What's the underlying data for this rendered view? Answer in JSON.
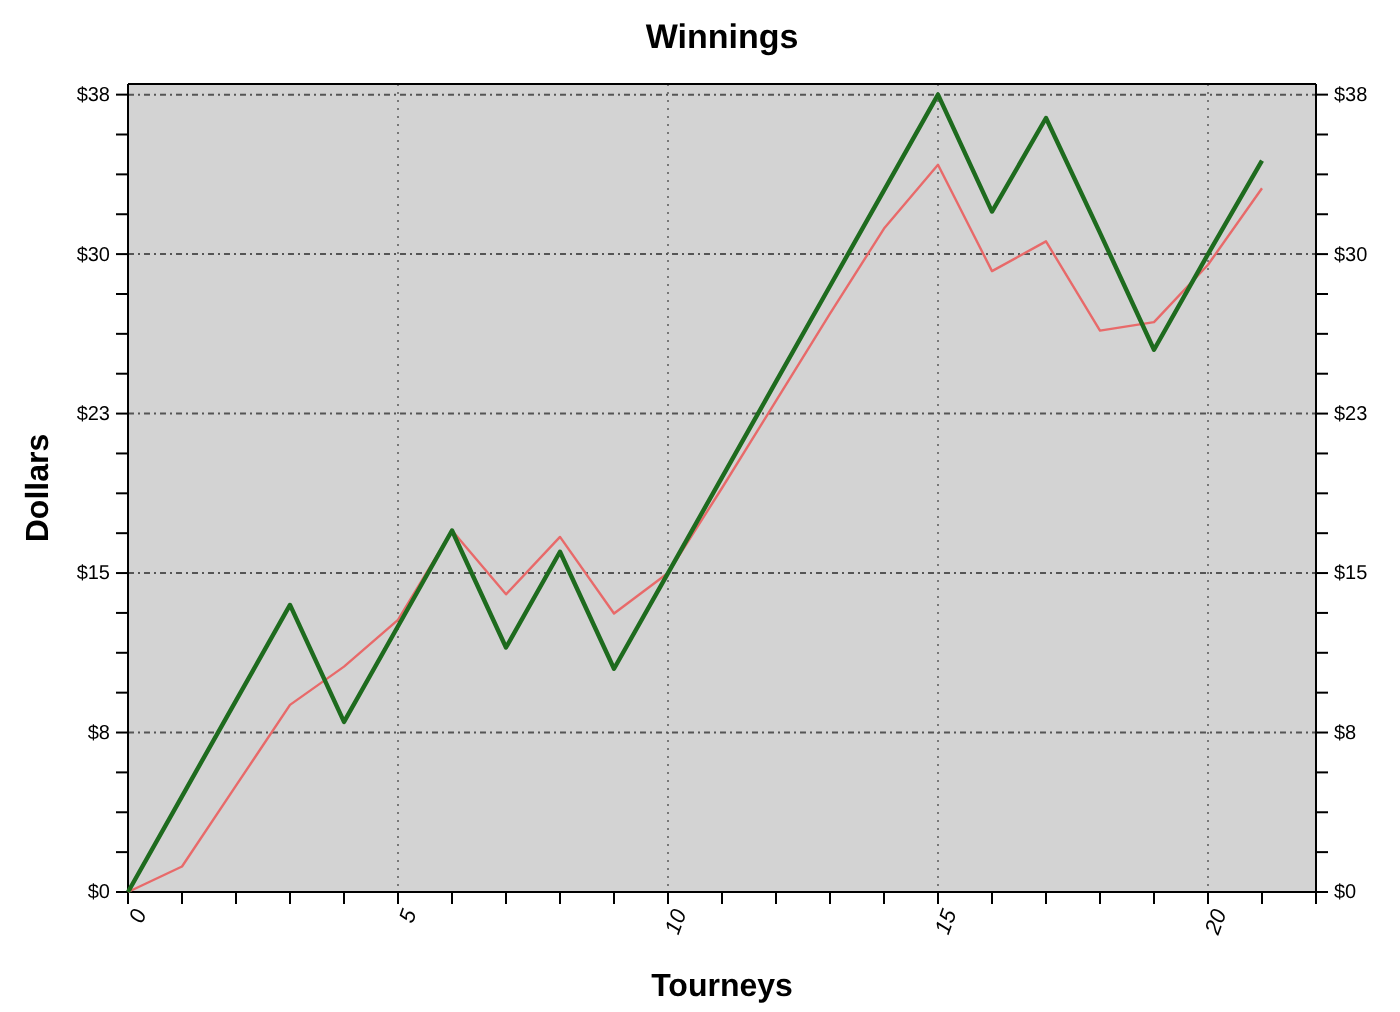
{
  "chart_data": {
    "type": "line",
    "title": "Winnings",
    "xlabel": "Tourneys",
    "ylabel": "Dollars",
    "x": [
      0,
      1,
      2,
      3,
      4,
      5,
      6,
      7,
      8,
      9,
      10,
      11,
      12,
      13,
      14,
      15,
      16,
      17,
      18,
      19,
      20,
      21
    ],
    "series": [
      {
        "color": "#e86a6a",
        "values": [
          0,
          1.2,
          5,
          8.8,
          10.6,
          12.8,
          17,
          14,
          16.7,
          13.1,
          15,
          19,
          23.1,
          27.2,
          31.2,
          34.2,
          29.2,
          30.6,
          26.4,
          26.8,
          29.5,
          33.1
        ]
      },
      {
        "color": "#1e6b1e",
        "values": [
          0,
          4.5,
          9,
          13.5,
          8,
          12.5,
          17,
          11.5,
          16,
          10.5,
          15,
          19.5,
          24,
          28.5,
          33,
          37.5,
          32,
          36.4,
          31,
          25.5,
          30,
          34.4
        ]
      }
    ],
    "xlim": [
      0,
      22
    ],
    "xticks": [
      0,
      {
        "value": 1,
        "label": null
      },
      {
        "value": 2,
        "label": null
      },
      {
        "value": 3,
        "label": null
      },
      {
        "value": 4,
        "label": null
      },
      5,
      {
        "value": 6,
        "label": null
      },
      {
        "value": 7,
        "label": null
      },
      {
        "value": 8,
        "label": null
      },
      {
        "value": 9,
        "label": null
      },
      10,
      {
        "value": 11,
        "label": null
      },
      {
        "value": 12,
        "label": null
      },
      {
        "value": 13,
        "label": null
      },
      {
        "value": 14,
        "label": null
      },
      15,
      {
        "value": 16,
        "label": null
      },
      {
        "value": 17,
        "label": null
      },
      {
        "value": 18,
        "label": null
      },
      {
        "value": 19,
        "label": null
      },
      20,
      {
        "value": 21,
        "label": null
      }
    ],
    "ylim": [
      0,
      38
    ],
    "yticks": [
      {
        "value": 0,
        "label": "$0"
      },
      {
        "value": 1.875,
        "label": null
      },
      {
        "value": 3.75,
        "label": null
      },
      {
        "value": 5.625,
        "label": null
      },
      {
        "value": 7.5,
        "label": "$8"
      },
      {
        "value": 9.375,
        "label": null
      },
      {
        "value": 11.25,
        "label": null
      },
      {
        "value": 13.125,
        "label": null
      },
      {
        "value": 15,
        "label": "$15"
      },
      {
        "value": 16.875,
        "label": null
      },
      {
        "value": 18.75,
        "label": null
      },
      {
        "value": 20.625,
        "label": null
      },
      {
        "value": 22.5,
        "label": "$23"
      },
      {
        "value": 24.375,
        "label": null
      },
      {
        "value": 26.25,
        "label": null
      },
      {
        "value": 28.125,
        "label": null
      },
      {
        "value": 30,
        "label": "$30"
      },
      {
        "value": 31.875,
        "label": null
      },
      {
        "value": 33.75,
        "label": null
      },
      {
        "value": 35.625,
        "label": null
      },
      {
        "value": 37.5,
        "label": "$38"
      }
    ],
    "y2lim": [
      0,
      38
    ],
    "y2ticks": [
      {
        "value": 0,
        "label": "$0"
      },
      {
        "value": 1.875,
        "label": null
      },
      {
        "value": 3.75,
        "label": null
      },
      {
        "value": 5.625,
        "label": null
      },
      {
        "value": 7.5,
        "label": "$8"
      },
      {
        "value": 9.375,
        "label": null
      },
      {
        "value": 11.25,
        "label": null
      },
      {
        "value": 13.125,
        "label": null
      },
      {
        "value": 15,
        "label": "$15"
      },
      {
        "value": 16.875,
        "label": null
      },
      {
        "value": 18.75,
        "label": null
      },
      {
        "value": 20.625,
        "label": null
      },
      {
        "value": 22.5,
        "label": "$23"
      },
      {
        "value": 24.375,
        "label": null
      },
      {
        "value": 26.25,
        "label": null
      },
      {
        "value": 28.125,
        "label": null
      },
      {
        "value": 30,
        "label": "$30"
      },
      {
        "value": 31.875,
        "label": null
      },
      {
        "value": 33.75,
        "label": null
      },
      {
        "value": 35.625,
        "label": null
      },
      {
        "value": 37.5,
        "label": "$38"
      }
    ],
    "grid": true,
    "line_style": "solid"
  }
}
